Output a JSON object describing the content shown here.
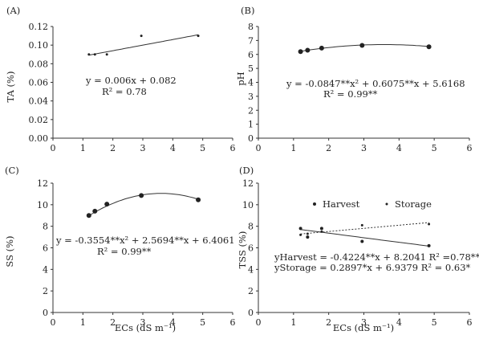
{
  "chart_data": [
    {
      "type": "scatter",
      "panel": "(A)",
      "ylabel": "TA (%)",
      "xlabel": "",
      "xlim": [
        0,
        6
      ],
      "ylim": [
        0,
        0.12
      ],
      "xticks": [
        "0",
        "1",
        "2",
        "3",
        "4",
        "5",
        "6"
      ],
      "yticks": [
        "0.00",
        "0.02",
        "0.04",
        "0.06",
        "0.08",
        "0.10",
        "0.12"
      ],
      "series": [
        {
          "x": [
            1.2,
            1.4,
            1.8,
            2.95,
            4.85
          ],
          "y": [
            0.09,
            0.09,
            0.09,
            0.11,
            0.11
          ],
          "marker_size": 1.5,
          "fit": {
            "kind": "poly",
            "coef": [
              0.082,
              0.006,
              0
            ],
            "dash": false
          }
        }
      ],
      "equations": [
        "y = 0.006x + 0.082",
        "R² = 0.78"
      ],
      "grid": false
    },
    {
      "type": "scatter",
      "panel": "(B)",
      "ylabel": "pH",
      "xlabel": "",
      "xlim": [
        0,
        6
      ],
      "ylim": [
        0,
        8
      ],
      "xticks": [
        "0",
        "1",
        "2",
        "3",
        "4",
        "5",
        "6"
      ],
      "yticks": [
        "0",
        "1",
        "2",
        "3",
        "4",
        "5",
        "6",
        "7",
        "8"
      ],
      "series": [
        {
          "x": [
            1.2,
            1.4,
            1.8,
            2.95,
            4.85
          ],
          "y": [
            6.2,
            6.3,
            6.45,
            6.65,
            6.55
          ],
          "marker_size": 3,
          "fit": {
            "kind": "poly",
            "coef": [
              5.6168,
              0.6075,
              -0.0847
            ],
            "dash": false
          }
        }
      ],
      "equations": [
        "y = -0.0847**x² + 0.6075**x + 5.6168",
        "R² = 0.99**"
      ],
      "grid": false
    },
    {
      "type": "scatter",
      "panel": "(C)",
      "ylabel": "SS (%)",
      "xlabel": "ECs (dS m⁻¹)",
      "xlim": [
        0,
        6
      ],
      "ylim": [
        0,
        12
      ],
      "xticks": [
        "0",
        "1",
        "2",
        "3",
        "4",
        "5",
        "6"
      ],
      "yticks": [
        "0",
        "2",
        "4",
        "6",
        "8",
        "10",
        "12"
      ],
      "series": [
        {
          "x": [
            1.2,
            1.4,
            1.8,
            2.95,
            4.85
          ],
          "y": [
            9.0,
            9.4,
            10.05,
            10.85,
            10.45
          ],
          "marker_size": 3,
          "fit": {
            "kind": "poly",
            "coef": [
              6.4061,
              2.5694,
              -0.3554
            ],
            "dash": false
          }
        }
      ],
      "equations": [
        "y = -0.3554**x² + 2.5694**x + 6.4061",
        "R² = 0.99**"
      ],
      "grid": false
    },
    {
      "type": "scatter",
      "panel": "(D)",
      "ylabel": "TSS (%)",
      "xlabel": "ECs (dS m⁻¹)",
      "xlim": [
        0,
        6
      ],
      "ylim": [
        0,
        12
      ],
      "xticks": [
        "0",
        "1",
        "2",
        "3",
        "4",
        "5",
        "6"
      ],
      "yticks": [
        "0",
        "2",
        "4",
        "6",
        "8",
        "10",
        "12"
      ],
      "legend": [
        "Harvest",
        "Storage"
      ],
      "series": [
        {
          "name": "Harvest",
          "x": [
            1.2,
            1.4,
            1.8,
            2.95,
            4.85
          ],
          "y": [
            7.8,
            7.0,
            7.8,
            6.6,
            6.2
          ],
          "marker_size": 2,
          "fit": {
            "kind": "poly",
            "coef": [
              8.2041,
              -0.4224,
              0
            ],
            "dash": false
          }
        },
        {
          "name": "Storage",
          "x": [
            1.2,
            1.4,
            1.8,
            2.95,
            4.85
          ],
          "y": [
            7.2,
            7.3,
            7.5,
            8.1,
            8.2
          ],
          "marker_size": 1.5,
          "fit": {
            "kind": "poly",
            "coef": [
              6.9379,
              0.2897,
              0
            ],
            "dash": true
          }
        }
      ],
      "equations": [
        "yHarvest = -0.4224**x + 8.2041 R² =0.78**",
        "yStorage = 0.2897*x + 6.9379 R² = 0.63*"
      ],
      "grid": false
    }
  ]
}
